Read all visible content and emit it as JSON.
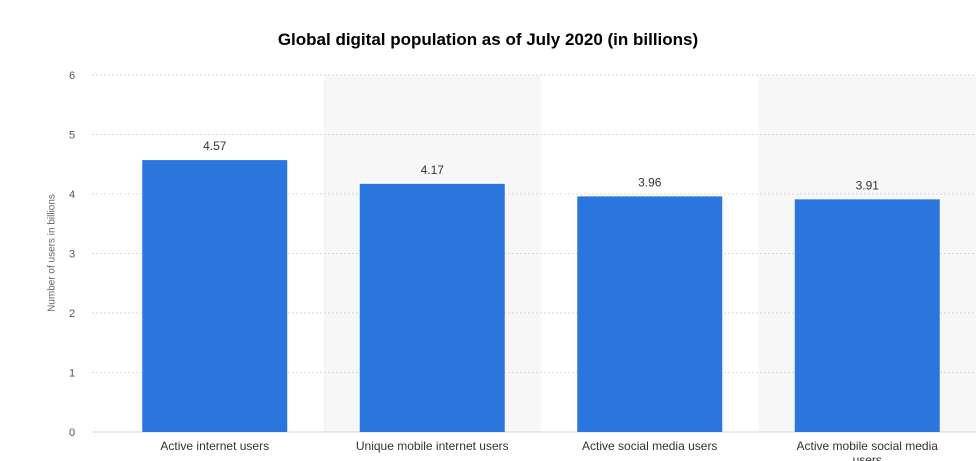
{
  "chart_data": {
    "type": "bar",
    "title": "Global digital population as of July 2020 (in billions)",
    "ylabel": "Number of users in billions",
    "xlabel": "",
    "categories": [
      "Active internet users",
      "Unique mobile internet users",
      "Active social media users",
      "Active mobile social media users"
    ],
    "values": [
      4.57,
      4.17,
      3.96,
      3.91
    ],
    "value_labels": [
      "4.57",
      "4.17",
      "3.96",
      "3.91"
    ],
    "ylim": [
      0,
      6
    ],
    "yticks": [
      "0",
      "1",
      "2",
      "3",
      "4",
      "5",
      "6"
    ],
    "grid": true,
    "bar_color": "#2a76dd"
  }
}
